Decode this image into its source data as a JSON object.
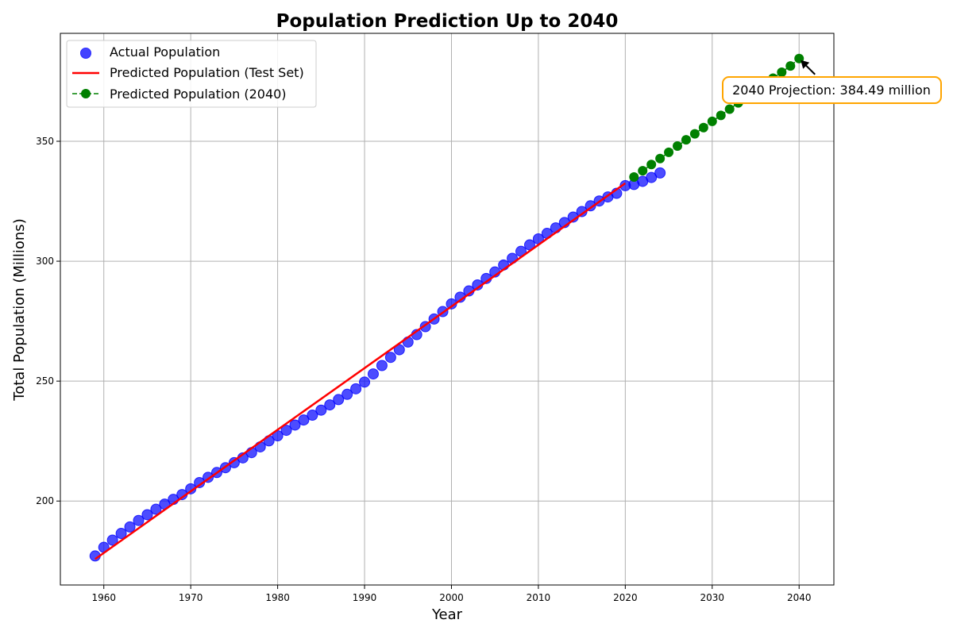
{
  "chart_data": {
    "type": "scatter",
    "title": "Population Prediction Up to 2040",
    "xlabel": "Year",
    "ylabel": "Total Population (Millions)",
    "xlim": [
      1955,
      2044
    ],
    "ylim": [
      165,
      395
    ],
    "x_ticks": [
      1960,
      1970,
      1980,
      1990,
      2000,
      2010,
      2020,
      2030,
      2040
    ],
    "y_ticks": [
      200,
      250,
      300,
      350
    ],
    "grid": true,
    "legend_position": "top-left",
    "colors": {
      "actual": "#0000ff",
      "test_line": "#ff0000",
      "future": "#008000",
      "annotation_border": "#ffa500"
    },
    "series": [
      {
        "name": "Actual Population",
        "style": "scatter",
        "x": [
          1959,
          1960,
          1961,
          1962,
          1963,
          1964,
          1965,
          1966,
          1967,
          1968,
          1969,
          1970,
          1971,
          1972,
          1973,
          1974,
          1975,
          1976,
          1977,
          1978,
          1979,
          1980,
          1981,
          1982,
          1983,
          1984,
          1985,
          1986,
          1987,
          1988,
          1989,
          1990,
          1991,
          1992,
          1993,
          1994,
          1995,
          1996,
          1997,
          1998,
          1999,
          2000,
          2001,
          2002,
          2003,
          2004,
          2005,
          2006,
          2007,
          2008,
          2009,
          2010,
          2011,
          2012,
          2013,
          2014,
          2015,
          2016,
          2017,
          2018,
          2019,
          2020,
          2021,
          2022,
          2023,
          2024
        ],
        "y": [
          177.1,
          180.7,
          183.7,
          186.5,
          189.2,
          191.9,
          194.3,
          196.6,
          198.7,
          200.7,
          202.7,
          205.1,
          207.7,
          209.9,
          211.9,
          213.9,
          216.0,
          218.0,
          220.2,
          222.6,
          225.1,
          227.2,
          229.5,
          231.7,
          233.8,
          235.8,
          237.9,
          240.1,
          242.3,
          244.5,
          246.8,
          249.6,
          253.0,
          256.5,
          259.9,
          263.1,
          266.3,
          269.4,
          272.7,
          275.9,
          279.0,
          282.2,
          285.0,
          287.6,
          290.1,
          292.8,
          295.5,
          298.4,
          301.2,
          304.1,
          306.8,
          309.3,
          311.6,
          313.9,
          316.1,
          318.4,
          320.7,
          323.1,
          325.1,
          326.8,
          328.3,
          331.5,
          332.0,
          333.3,
          334.9,
          336.8
        ]
      },
      {
        "name": "Predicted Population (Test Set)",
        "style": "line",
        "x": [
          1959,
          2020
        ],
        "y": [
          175.8,
          332.5
        ]
      },
      {
        "name": "Predicted Population (2040)",
        "style": "dashed-line-markers",
        "x": [
          2021,
          2022,
          2023,
          2024,
          2025,
          2026,
          2027,
          2028,
          2029,
          2030,
          2031,
          2032,
          2033,
          2034,
          2035,
          2036,
          2037,
          2038,
          2039,
          2040
        ],
        "y": [
          335.1,
          337.7,
          340.3,
          342.8,
          345.4,
          348.0,
          350.6,
          353.1,
          355.7,
          358.3,
          360.8,
          363.4,
          366.0,
          368.6,
          371.1,
          373.7,
          376.3,
          378.8,
          381.4,
          384.49
        ]
      }
    ],
    "annotation": {
      "text": "2040 Projection: 384.49 million",
      "x": 2040,
      "y": 384.49
    }
  }
}
